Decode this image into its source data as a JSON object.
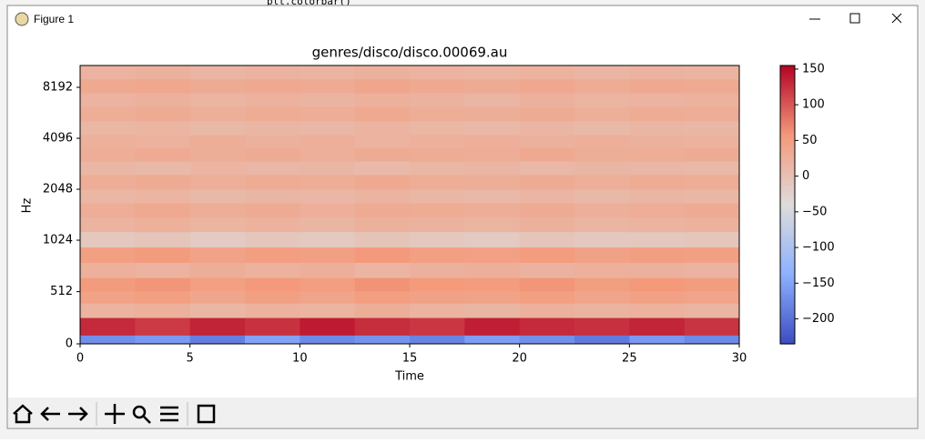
{
  "window": {
    "title": "Figure 1"
  },
  "background": {
    "code": "plt.colorbar()"
  },
  "chart_data": {
    "type": "spectrogram",
    "title": "genres/disco/disco.00069.au",
    "xlabel": "Time",
    "ylabel": "Hz",
    "xlim": [
      0,
      30
    ],
    "xticks": [
      0,
      5,
      10,
      15,
      20,
      25,
      30
    ],
    "ylim": [
      0,
      11025
    ],
    "yticks": [
      0,
      512,
      1024,
      2048,
      4096,
      8192
    ],
    "yscale": "symlog",
    "linthresh": 1000,
    "base": 2,
    "x_bins": [
      0,
      2.5,
      5,
      7.5,
      10,
      12.5,
      15,
      17.5,
      20,
      22.5,
      25,
      27.5,
      30
    ],
    "y_bins": [
      0,
      86,
      258,
      400,
      520,
      650,
      800,
      950,
      1150,
      1400,
      1700,
      2048,
      2500,
      3000,
      3600,
      4300,
      5200,
      6300,
      7600,
      9200,
      11025
    ],
    "values": [
      [
        -170,
        -160,
        -185,
        -150,
        -175,
        -165,
        -180,
        -155,
        -170,
        -190,
        -160,
        -175
      ],
      [
        130,
        120,
        135,
        125,
        140,
        128,
        122,
        138,
        130,
        126,
        134,
        124
      ],
      [
        20,
        25,
        15,
        22,
        18,
        28,
        20,
        16,
        24,
        19,
        22,
        17
      ],
      [
        45,
        50,
        40,
        48,
        42,
        52,
        46,
        44,
        50,
        41,
        47,
        43
      ],
      [
        55,
        60,
        50,
        58,
        52,
        62,
        56,
        54,
        60,
        51,
        57,
        53
      ],
      [
        25,
        20,
        28,
        22,
        26,
        18,
        24,
        27,
        21,
        25,
        23,
        20
      ],
      [
        50,
        55,
        45,
        52,
        48,
        58,
        50,
        47,
        54,
        46,
        51,
        49
      ],
      [
        -10,
        -5,
        -15,
        -8,
        -12,
        -4,
        -10,
        -14,
        -6,
        -11,
        -9,
        -7
      ],
      [
        20,
        25,
        18,
        22,
        16,
        24,
        21,
        19,
        23,
        17,
        20,
        22
      ],
      [
        30,
        35,
        28,
        32,
        26,
        34,
        31,
        29,
        33,
        27,
        30,
        32
      ],
      [
        15,
        18,
        12,
        16,
        14,
        19,
        15,
        13,
        17,
        12,
        16,
        14
      ],
      [
        30,
        33,
        27,
        31,
        29,
        35,
        30,
        28,
        32,
        26,
        31,
        29
      ],
      [
        15,
        12,
        18,
        14,
        16,
        11,
        15,
        17,
        13,
        16,
        14,
        12
      ],
      [
        30,
        34,
        28,
        32,
        27,
        33,
        31,
        29,
        35,
        28,
        30,
        32
      ],
      [
        25,
        22,
        28,
        24,
        26,
        20,
        25,
        27,
        23,
        26,
        24,
        22
      ],
      [
        15,
        18,
        12,
        16,
        14,
        19,
        15,
        13,
        17,
        12,
        16,
        14
      ],
      [
        30,
        33,
        27,
        31,
        29,
        35,
        30,
        28,
        32,
        26,
        31,
        29
      ],
      [
        20,
        24,
        18,
        22,
        19,
        25,
        21,
        17,
        23,
        18,
        20,
        22
      ],
      [
        35,
        38,
        32,
        36,
        34,
        40,
        35,
        33,
        37,
        31,
        36,
        34
      ],
      [
        20,
        23,
        17,
        21,
        19,
        24,
        20,
        18,
        22,
        17,
        21,
        19
      ]
    ],
    "colormap": "coolwarm",
    "clim": [
      -235,
      155
    ],
    "colorbar_ticks": [
      150,
      100,
      50,
      0,
      {
        "value": -50,
        "label": "−50"
      },
      {
        "value": -100,
        "label": "−100"
      },
      {
        "value": -150,
        "label": "−150"
      },
      {
        "value": -200,
        "label": "−200"
      }
    ]
  }
}
